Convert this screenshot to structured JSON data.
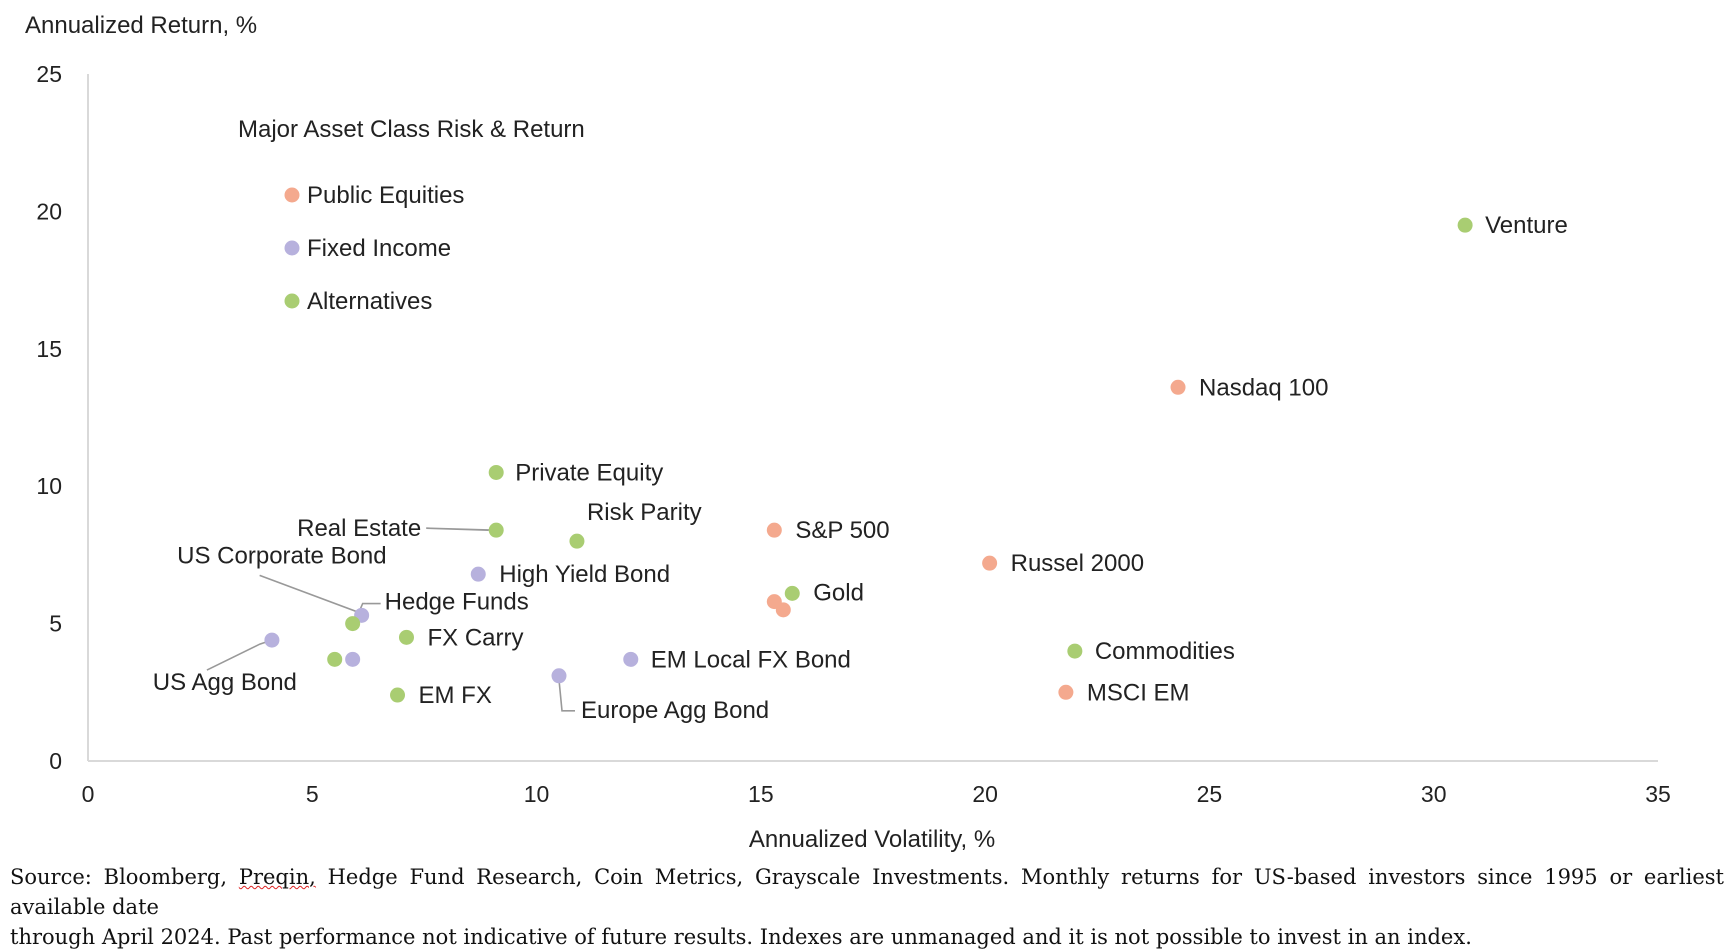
{
  "chart_data": {
    "type": "scatter",
    "title": "Major Asset Class Risk & Return",
    "xlabel": "Annualized Volatility, %",
    "ylabel": "Annualized Return, %",
    "xlim": [
      0,
      35
    ],
    "ylim": [
      0,
      25
    ],
    "xticks": [
      "0",
      "5",
      "10",
      "15",
      "20",
      "25",
      "30",
      "35"
    ],
    "yticks": [
      "0",
      "5",
      "10",
      "15",
      "20",
      "25"
    ],
    "grid": false,
    "legend_position": "top-left",
    "legend": [
      {
        "name": "Public Equities",
        "color": "#f4a98e"
      },
      {
        "name": "Fixed Income",
        "color": "#b7b1dd"
      },
      {
        "name": "Alternatives",
        "color": "#a9cd72"
      }
    ],
    "series": [
      {
        "name": "Public Equities",
        "color": "#f4a98e",
        "points": [
          {
            "label": "Nasdaq 100",
            "x": 24.3,
            "y": 13.6
          },
          {
            "label": "S&P 500",
            "x": 15.3,
            "y": 8.4
          },
          {
            "label": "Russel 2000",
            "x": 20.1,
            "y": 7.2
          },
          {
            "label": "",
            "x": 15.3,
            "y": 5.8
          },
          {
            "label": "",
            "x": 15.5,
            "y": 5.5
          },
          {
            "label": "MSCI EM",
            "x": 21.8,
            "y": 2.5
          }
        ]
      },
      {
        "name": "Fixed Income",
        "color": "#b7b1dd",
        "points": [
          {
            "label": "High Yield Bond",
            "x": 8.7,
            "y": 6.8
          },
          {
            "label": "US Corporate Bond",
            "x": 6.1,
            "y": 5.3
          },
          {
            "label": "US Agg Bond",
            "x": 4.1,
            "y": 4.4
          },
          {
            "label": "",
            "x": 5.9,
            "y": 3.7
          },
          {
            "label": "EM Local FX Bond",
            "x": 12.1,
            "y": 3.7
          },
          {
            "label": "Europe Agg Bond",
            "x": 10.5,
            "y": 3.1
          }
        ]
      },
      {
        "name": "Alternatives",
        "color": "#a9cd72",
        "points": [
          {
            "label": "Venture",
            "x": 30.7,
            "y": 19.5
          },
          {
            "label": "Private Equity",
            "x": 9.1,
            "y": 10.5
          },
          {
            "label": "Real Estate",
            "x": 9.1,
            "y": 8.4
          },
          {
            "label": "Risk Parity",
            "x": 10.9,
            "y": 8.0
          },
          {
            "label": "Gold",
            "x": 15.7,
            "y": 6.1
          },
          {
            "label": "Hedge Funds",
            "x": 5.9,
            "y": 5.0
          },
          {
            "label": "FX Carry",
            "x": 7.1,
            "y": 4.5
          },
          {
            "label": "",
            "x": 5.5,
            "y": 3.7
          },
          {
            "label": "Commodities",
            "x": 22.0,
            "y": 4.0
          },
          {
            "label": "EM FX",
            "x": 6.9,
            "y": 2.4
          }
        ]
      }
    ]
  },
  "source": {
    "prefix": "Source: Bloomberg, ",
    "preqin": "Preqin,",
    "line1_rest": " Hedge Fund Research, Coin Metrics, Grayscale Investments. Monthly returns for US-based investors since 1995 or earliest available date",
    "line2": "through April 2024. Past performance not indicative of future results. Indexes are unmanaged and it is not possible to invest in an index."
  }
}
